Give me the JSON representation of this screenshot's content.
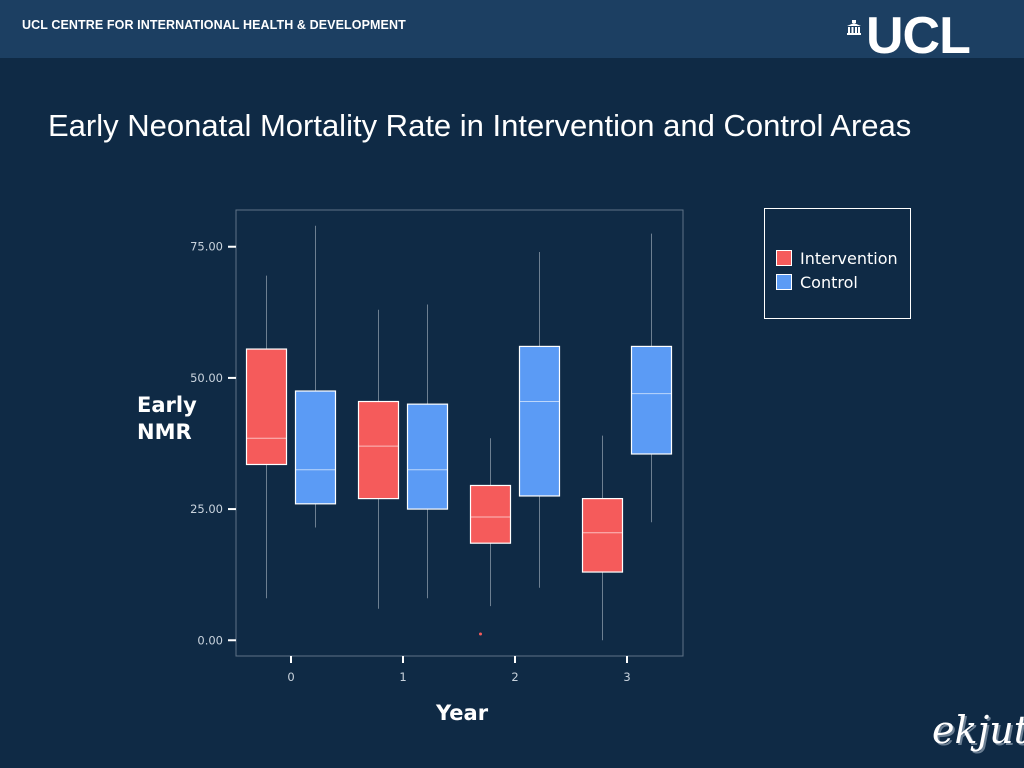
{
  "header": {
    "org_name": "UCL CENTRE FOR INTERNATIONAL HEALTH & DEVELOPMENT",
    "logo_text": "UCL",
    "logo_icon": "portico-icon"
  },
  "footer": {
    "brand": "ekjut"
  },
  "colors": {
    "background": "#0f2a45",
    "header": "#1c3f62",
    "intervention": "#f55b5b",
    "control": "#5b9bf5"
  },
  "chart_data": {
    "type": "boxplot",
    "title": "Early Neonatal Mortality Rate in Intervention and Control Areas",
    "xlabel": "Year",
    "ylabel_lines": [
      "Early",
      "NMR"
    ],
    "categories": [
      "0",
      "1",
      "2",
      "3"
    ],
    "y_ticks": [
      0,
      25,
      50,
      75
    ],
    "y_tick_labels": [
      "0.00",
      "25.00",
      "50.00",
      "75.00"
    ],
    "ylim": [
      -3,
      82
    ],
    "grid": false,
    "legend_position": "right",
    "series": [
      {
        "name": "Intervention",
        "color": "#f55b5b",
        "boxes": [
          {
            "min": 8,
            "q1": 33.5,
            "median": 38.5,
            "q3": 55.5,
            "max": 69.5
          },
          {
            "min": 6,
            "q1": 27,
            "median": 37,
            "q3": 45.5,
            "max": 63
          },
          {
            "min": 6.5,
            "q1": 18.5,
            "median": 23.5,
            "q3": 29.5,
            "max": 38.5,
            "outliers": [
              1.2
            ]
          },
          {
            "min": 0,
            "q1": 13,
            "median": 20.5,
            "q3": 27,
            "max": 39
          }
        ]
      },
      {
        "name": "Control",
        "color": "#5b9bf5",
        "boxes": [
          {
            "min": 21.5,
            "q1": 26,
            "median": 32.5,
            "q3": 47.5,
            "max": 79
          },
          {
            "min": 8,
            "q1": 25,
            "median": 32.5,
            "q3": 45,
            "max": 64
          },
          {
            "min": 10,
            "q1": 27.5,
            "median": 45.5,
            "q3": 56,
            "max": 74
          },
          {
            "min": 22.5,
            "q1": 35.5,
            "median": 47,
            "q3": 56,
            "max": 77.5
          }
        ]
      }
    ]
  }
}
